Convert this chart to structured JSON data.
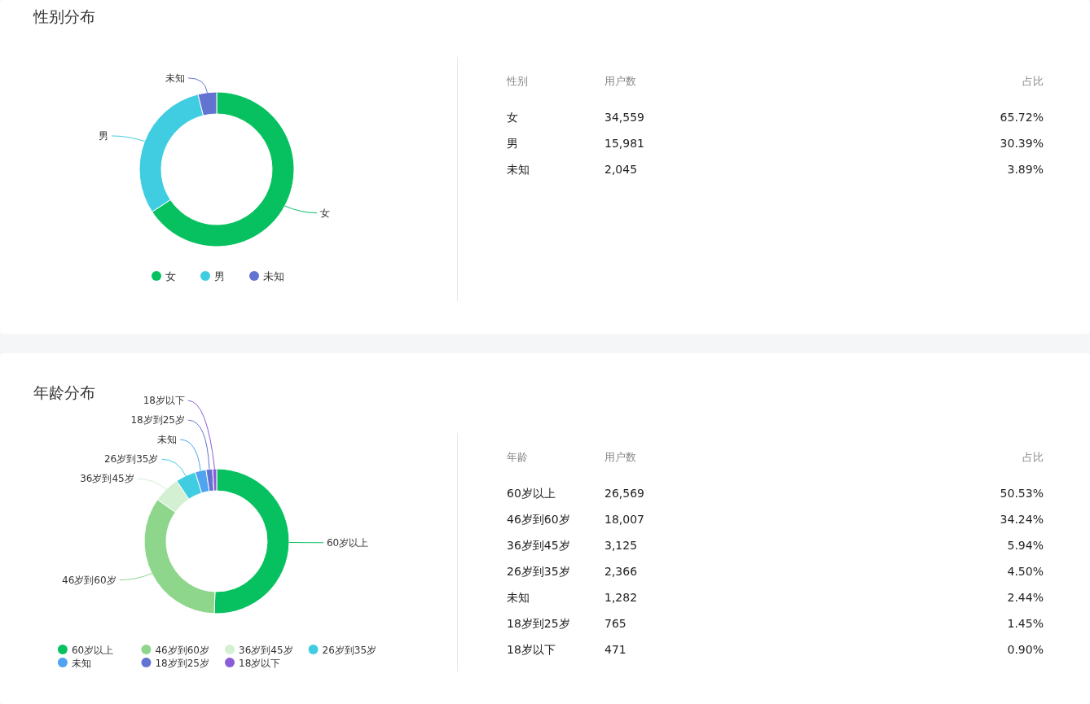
{
  "chart_data": [
    {
      "type": "donut",
      "title": "性别分布",
      "legend": "bottom",
      "categories": [
        "女",
        "男",
        "未知"
      ],
      "values": [
        65.72,
        30.39,
        3.89
      ],
      "colors": [
        "#07c160",
        "#40cde2",
        "#6373d1"
      ]
    },
    {
      "type": "other",
      "annotations": [
        "性别",
        "用户数",
        "占比",
        "女",
        "34,559",
        "65.72%",
        "男",
        "15,981",
        "30.39%",
        "未知",
        "2,045",
        "3.89%"
      ]
    },
    {
      "type": "donut",
      "title": "年龄分布",
      "legend": "bottom",
      "categories": [
        "60岁以上",
        "46岁到60岁",
        "36岁到45岁",
        "26岁到35岁",
        "未知",
        "18岁到25岁",
        "18岁以下"
      ],
      "values": [
        50.53,
        34.24,
        5.94,
        4.5,
        2.44,
        1.45,
        0.9
      ],
      "colors": [
        "#07c160",
        "#8ed68c",
        "#d3f0d3",
        "#40cde2",
        "#4fa3ef",
        "#6373d1",
        "#8b5cd8"
      ]
    },
    {
      "type": "other",
      "annotations": [
        "年龄",
        "用户数",
        "占比",
        "60岁以上",
        "26,569",
        "50.53%",
        "46岁到60岁",
        "18,007",
        "34.24%",
        "36岁到45岁",
        "3,125",
        "5.94%",
        "26岁到35岁",
        "2,366",
        "4.50%",
        "未知",
        "1,282",
        "2.44%",
        "18岁到25岁",
        "765",
        "1.45%",
        "18岁以下",
        "471",
        "0.90%"
      ]
    }
  ]
}
